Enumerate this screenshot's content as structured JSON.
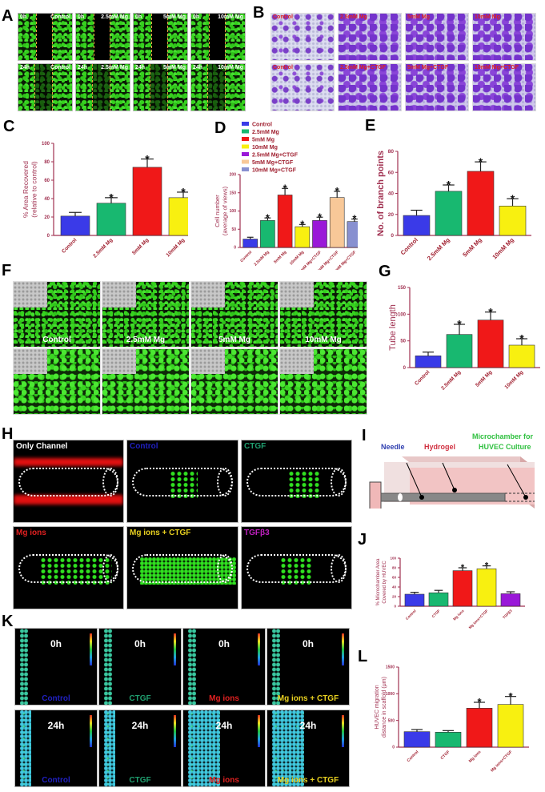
{
  "panels": {
    "A": {
      "letter": "A",
      "rows": [
        [
          {
            "time": "0h",
            "group": "Control"
          },
          {
            "time": "0h",
            "group": "2.5mM Mg"
          },
          {
            "time": "0h",
            "group": "5mM Mg"
          },
          {
            "time": "0h",
            "group": "10mM Mg"
          }
        ],
        [
          {
            "time": "24h",
            "group": "Control"
          },
          {
            "time": "24h",
            "group": "2.5mM Mg"
          },
          {
            "time": "24h",
            "group": "5mM Mg"
          },
          {
            "time": "24h",
            "group": "10mM Mg"
          }
        ]
      ]
    },
    "B": {
      "letter": "B",
      "rows": [
        [
          "Control",
          "2.5mM Mg",
          "5mM Mg",
          "10mM Mg"
        ],
        [
          "Control",
          "2.5mM Mg+CTGF",
          "5mM Mg+CTGF",
          "10mM Mg+CTGF"
        ]
      ]
    },
    "F": {
      "letter": "F",
      "labels": [
        "Control",
        "2.5mM Mg",
        "5mM Mg",
        "10mM Mg"
      ]
    },
    "H": {
      "letter": "H",
      "images": [
        {
          "label": "Only Channel",
          "color": "#ffffff"
        },
        {
          "label": "Control",
          "color": "#2020c0"
        },
        {
          "label": "CTGF",
          "color": "#20a070"
        },
        {
          "label": "Mg ions",
          "color": "#e02020"
        },
        {
          "label": "Mg ions + CTGF",
          "color": "#e8d020"
        },
        {
          "label": "TGFβ3",
          "color": "#c020c0"
        }
      ]
    },
    "I": {
      "letter": "I",
      "labels": {
        "needle": "Needle",
        "hydrogel": "Hydrogel",
        "microchamber_line1": "Microchamber for",
        "microchamber_line2": "HUVEC Culture"
      },
      "colors": {
        "needle": "#3040b0",
        "hydrogel": "#d03040",
        "microchamber": "#30c040"
      }
    },
    "K": {
      "letter": "K",
      "rows": [
        [
          {
            "time": "0h",
            "group": "Control",
            "color": "#2020c0"
          },
          {
            "time": "0h",
            "group": "CTGF",
            "color": "#20a070"
          },
          {
            "time": "0h",
            "group": "Mg ions",
            "color": "#e02020"
          },
          {
            "time": "0h",
            "group": "Mg ions + CTGF",
            "color": "#e8d020"
          }
        ],
        [
          {
            "time": "24h",
            "group": "Control",
            "color": "#2020c0"
          },
          {
            "time": "24h",
            "group": "CTGF",
            "color": "#20a070"
          },
          {
            "time": "24h",
            "group": "Mg ions",
            "color": "#e02020"
          },
          {
            "time": "24h",
            "group": "Mg ions + CTGF",
            "color": "#e8d020"
          }
        ]
      ]
    }
  },
  "colors": {
    "axis": "#a03050",
    "control": "#3a3ae8",
    "mg25": "#18b870",
    "mg5": "#f01818",
    "mg10": "#f8f010",
    "mg25ctgf": "#9a18d8",
    "mg5ctgf": "#f8c898",
    "mg10ctgf": "#8890d0",
    "tgfb3": "#9a18d8"
  },
  "chart_data": [
    {
      "id": "C",
      "type": "bar",
      "title": "",
      "categories": [
        "Control",
        "2.5mM Mg",
        "5mM Mg",
        "10mM Mg"
      ],
      "values": [
        21,
        35,
        74,
        41
      ],
      "errors": [
        4,
        6,
        9,
        6
      ],
      "significant": [
        false,
        true,
        true,
        true
      ],
      "colors": [
        "#3a3ae8",
        "#18b870",
        "#f01818",
        "#f8f010"
      ],
      "ylabel": "% Area Recovered\n(relative to control)",
      "ylabel_lines": [
        "% Area Recovered",
        "(relative to control)"
      ],
      "yticks": [
        0,
        20,
        40,
        60,
        80,
        100
      ],
      "ylim": [
        0,
        100
      ],
      "grid": false
    },
    {
      "id": "D",
      "type": "bar",
      "categories": [
        "Control",
        "2.5mM Mg",
        "5mM Mg",
        "10mM Mg",
        "2.5mM Mg+CTGF",
        "5mM Mg+CTGF",
        "10mM Mg+CTGF"
      ],
      "values": [
        23,
        74,
        144,
        57,
        74,
        137,
        71
      ],
      "errors": [
        5,
        7,
        18,
        6,
        9,
        17,
        7
      ],
      "significant": [
        false,
        true,
        true,
        true,
        true,
        true,
        true
      ],
      "colors": [
        "#3a3ae8",
        "#18b870",
        "#f01818",
        "#f8f010",
        "#9a18d8",
        "#f8c898",
        "#8890d0"
      ],
      "legend": [
        "Control",
        "2.5mM Mg",
        "5mM Mg",
        "10mM Mg",
        "2.5mM Mg+CTGF",
        "5mM Mg+CTGF",
        "10mM Mg+CTGF"
      ],
      "legend_position": "top",
      "ylabel_lines": [
        "Cell number",
        "(average of views)"
      ],
      "yticks": [
        0,
        50,
        100,
        150,
        200
      ],
      "ylim": [
        0,
        200
      ],
      "grid": false
    },
    {
      "id": "E",
      "type": "bar",
      "categories": [
        "Control",
        "2.5mM Mg",
        "5mM Mg",
        "10mM Mg"
      ],
      "values": [
        19,
        42,
        61,
        28
      ],
      "errors": [
        5,
        6,
        9,
        7
      ],
      "significant": [
        false,
        true,
        true,
        true
      ],
      "colors": [
        "#3a3ae8",
        "#18b870",
        "#f01818",
        "#f8f010"
      ],
      "ylabel_lines": [
        "No. of branch points"
      ],
      "yticks": [
        0,
        20,
        40,
        60,
        80
      ],
      "ylim": [
        0,
        80
      ],
      "grid": false
    },
    {
      "id": "G",
      "type": "bar",
      "categories": [
        "Control",
        "2.5mM Mg",
        "5mM Mg",
        "10mM Mg"
      ],
      "values": [
        22,
        62,
        89,
        42
      ],
      "errors": [
        7,
        19,
        15,
        12
      ],
      "significant": [
        false,
        true,
        true,
        true
      ],
      "colors": [
        "#3a3ae8",
        "#18b870",
        "#f01818",
        "#f8f010"
      ],
      "ylabel_lines": [
        "Tube length"
      ],
      "yticks": [
        0,
        50,
        100,
        150
      ],
      "ylim": [
        0,
        150
      ],
      "grid": false
    },
    {
      "id": "J",
      "type": "bar",
      "categories": [
        "Control",
        "CTGF",
        "Mg ions",
        "Mg ions+CTGF",
        "TGFβ3"
      ],
      "values": [
        25,
        28,
        74,
        78,
        26
      ],
      "errors": [
        4,
        5,
        6,
        6,
        4
      ],
      "significant": [
        false,
        false,
        true,
        true,
        false
      ],
      "colors": [
        "#3a3ae8",
        "#18b870",
        "#f01818",
        "#f8f010",
        "#9a18d8"
      ],
      "ylabel_lines": [
        "% Microchamber Area",
        "Covered by HUVEC"
      ],
      "yticks": [
        0,
        20,
        40,
        60,
        80,
        100
      ],
      "ylim": [
        0,
        100
      ],
      "grid": false
    },
    {
      "id": "L",
      "type": "bar",
      "categories": [
        "Control",
        "CTGF",
        "Mg ions",
        "Mg ions+CTGF"
      ],
      "values": [
        290,
        280,
        730,
        800
      ],
      "errors": [
        40,
        30,
        110,
        150
      ],
      "significant": [
        false,
        false,
        true,
        true
      ],
      "colors": [
        "#3a3ae8",
        "#18b870",
        "#f01818",
        "#f8f010"
      ],
      "ylabel_lines": [
        "HUVEC migration",
        "distance in scaffold (μm)"
      ],
      "yticks": [
        0,
        500,
        1000,
        1500
      ],
      "ylim": [
        0,
        1500
      ],
      "grid": false
    }
  ],
  "star": "*"
}
